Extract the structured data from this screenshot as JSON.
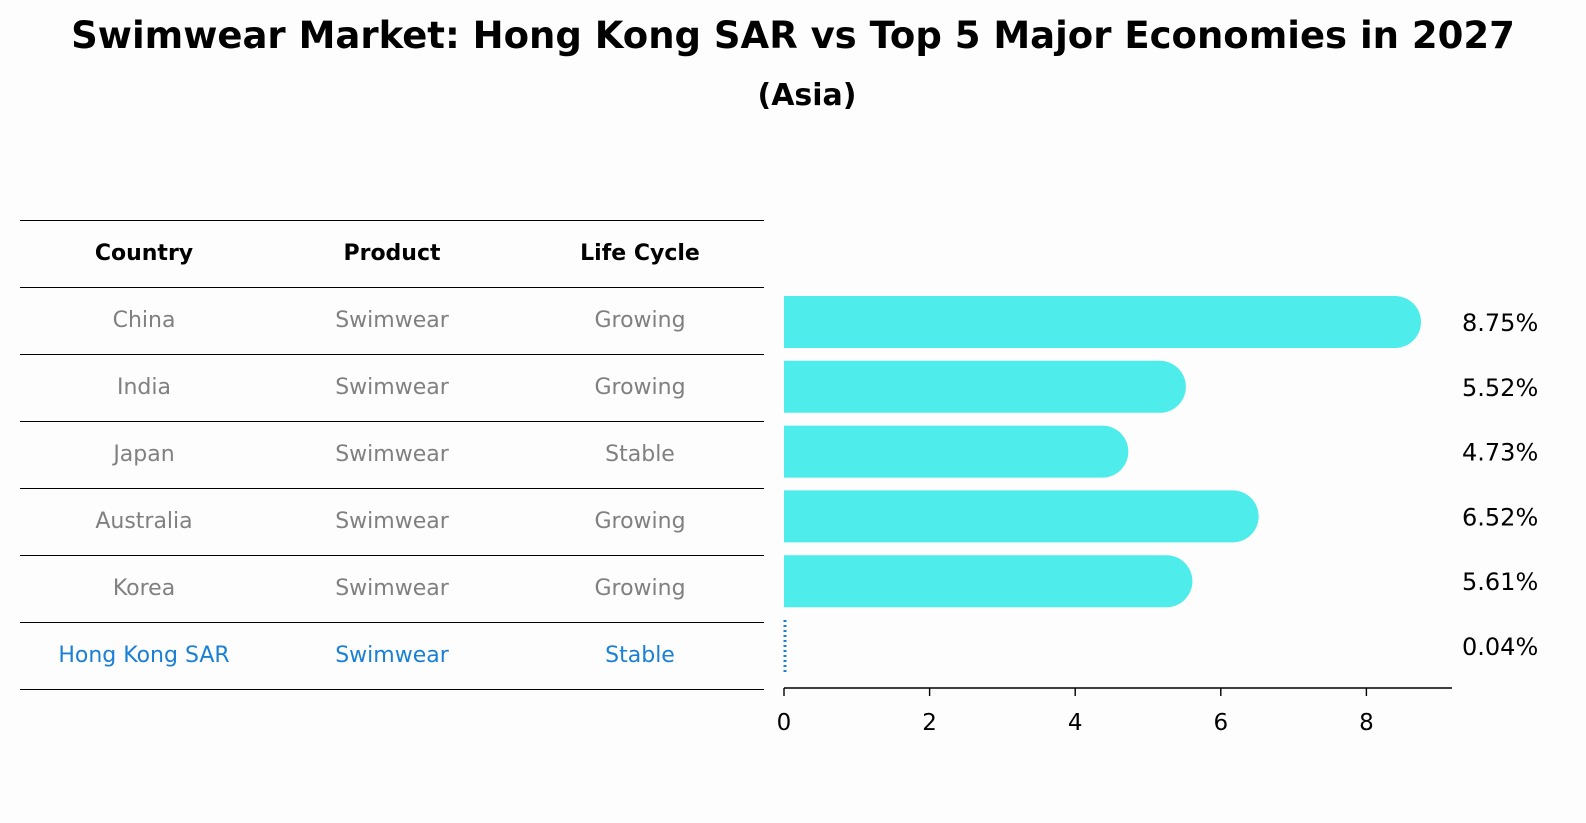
{
  "title": "Swimwear Market: Hong Kong SAR vs Top 5 Major Economies in 2027",
  "subtitle": "(Asia)",
  "table": {
    "headers": [
      "Country",
      "Product",
      "Life Cycle"
    ],
    "rows": [
      [
        "China",
        "Swimwear",
        "Growing"
      ],
      [
        "India",
        "Swimwear",
        "Growing"
      ],
      [
        "Japan",
        "Swimwear",
        "Stable"
      ],
      [
        "Australia",
        "Swimwear",
        "Growing"
      ],
      [
        "Korea",
        "Swimwear",
        "Growing"
      ],
      [
        "Hong Kong SAR",
        "Swimwear",
        "Stable"
      ]
    ],
    "highlight_row": 5
  },
  "colors": {
    "bar": "#4eecea",
    "highlight": "#1a7fd6",
    "muted_text": "#808080"
  },
  "chart_data": {
    "type": "bar",
    "orientation": "horizontal",
    "categories": [
      "China",
      "India",
      "Japan",
      "Australia",
      "Korea",
      "Hong Kong SAR"
    ],
    "values": [
      8.75,
      5.52,
      4.73,
      6.52,
      5.61,
      0.04
    ],
    "value_labels": [
      "8.75%",
      "5.52%",
      "4.73%",
      "6.52%",
      "5.61%",
      "0.04%"
    ],
    "xlim": [
      0,
      9.2
    ],
    "xticks": [
      0,
      2,
      4,
      6,
      8
    ],
    "grid": false
  }
}
